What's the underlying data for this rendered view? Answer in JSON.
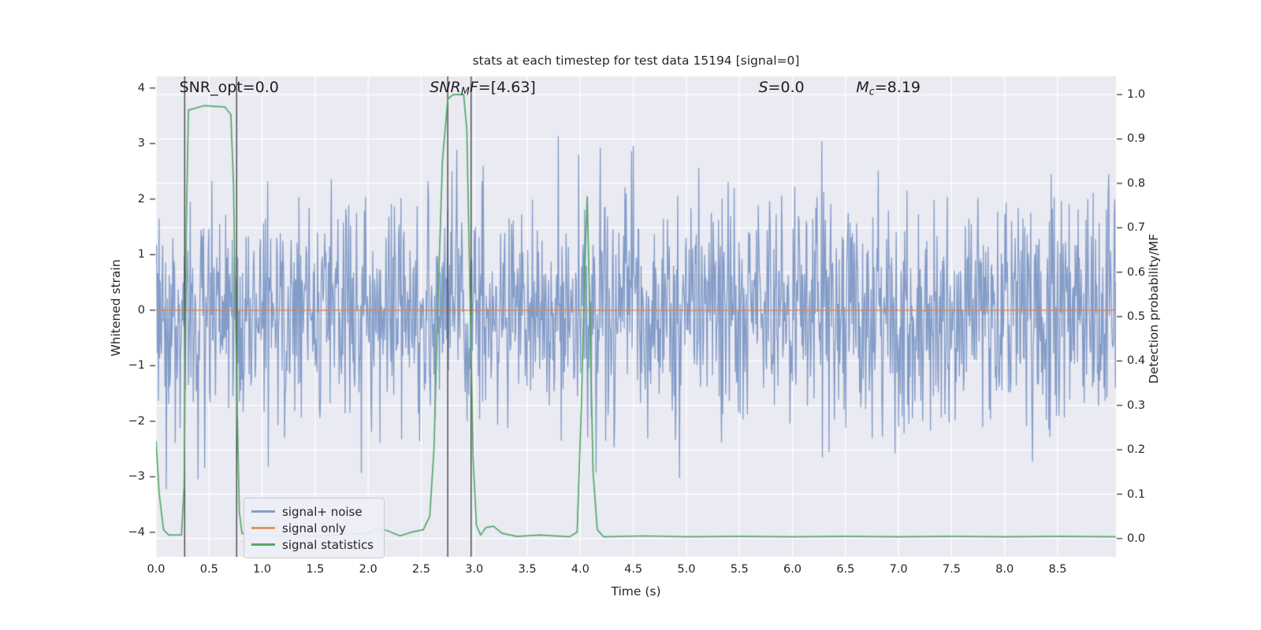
{
  "figure": {
    "bg": "#ffffff",
    "plot_bg": "#eaeaf2",
    "grid_color": "#ffffff",
    "text_color": "#262626",
    "vline_color": "#474747",
    "tick_mark_color": "#262626"
  },
  "chart_data": {
    "type": "line",
    "title": "stats at each timestep for test data 15194 [signal=0]",
    "xlabel": "Time (s)",
    "ylabel_left": "Whitened strain",
    "ylabel_right": "Detection probability/MF",
    "xlim": [
      0,
      9.05
    ],
    "ylim_left": [
      -4.44,
      4.21
    ],
    "ylim_right": [
      -0.041,
      1.041
    ],
    "x_ticks": [
      0.0,
      0.5,
      1.0,
      1.5,
      2.0,
      2.5,
      3.0,
      3.5,
      4.0,
      4.5,
      5.0,
      5.5,
      6.0,
      6.5,
      7.0,
      7.5,
      8.0,
      8.5
    ],
    "x_tick_labels": [
      "0.0",
      "0.5",
      "1.0",
      "1.5",
      "2.0",
      "2.5",
      "3.0",
      "3.5",
      "4.0",
      "4.5",
      "5.0",
      "5.5",
      "6.0",
      "6.5",
      "7.0",
      "7.5",
      "8.0",
      "8.5"
    ],
    "y_ticks_left": [
      -4,
      -3,
      -2,
      -1,
      0,
      1,
      2,
      3,
      4
    ],
    "y_tick_labels_left": [
      "−4",
      "−3",
      "−2",
      "−1",
      "0",
      "1",
      "2",
      "3",
      "4"
    ],
    "y_ticks_right": [
      0.0,
      0.1,
      0.2,
      0.3,
      0.4,
      0.5,
      0.6,
      0.7,
      0.8,
      0.9,
      1.0
    ],
    "y_tick_labels_right": [
      "0.0",
      "0.1",
      "0.2",
      "0.3",
      "0.4",
      "0.5",
      "0.6",
      "0.7",
      "0.8",
      "0.9",
      "1.0"
    ],
    "grid_on": true,
    "legend_position": "lower left",
    "series": [
      {
        "name": "signal+ noise",
        "axis": "left",
        "kind": "gaussian-noise",
        "mean": 0,
        "std": 1.05,
        "n_points": 1600,
        "seed": 3,
        "clip": 3.95,
        "color": "#4c72b0",
        "alpha": 0.65,
        "line_width": 1.3
      },
      {
        "name": "signal only",
        "axis": "left",
        "kind": "constant",
        "value": 0,
        "color": "#dd8452",
        "alpha": 0.9,
        "line_width": 1.5
      },
      {
        "name": "signal statistics",
        "axis": "right",
        "kind": "polyline",
        "color": "#55a868",
        "alpha": 1,
        "line_width": 1.7,
        "points": [
          [
            0,
            0.22
          ],
          [
            0.03,
            0.1
          ],
          [
            0.07,
            0.02
          ],
          [
            0.12,
            0.008
          ],
          [
            0.24,
            0.008
          ],
          [
            0.265,
            0.12
          ],
          [
            0.285,
            0.7
          ],
          [
            0.305,
            0.965
          ],
          [
            0.45,
            0.975
          ],
          [
            0.65,
            0.972
          ],
          [
            0.705,
            0.955
          ],
          [
            0.73,
            0.8
          ],
          [
            0.76,
            0.35
          ],
          [
            0.785,
            0.06
          ],
          [
            0.81,
            0.012
          ],
          [
            1.0,
            0.006
          ],
          [
            1.5,
            0.006
          ],
          [
            2.0,
            0.012
          ],
          [
            2.08,
            0.022
          ],
          [
            2.18,
            0.018
          ],
          [
            2.3,
            0.006
          ],
          [
            2.42,
            0.015
          ],
          [
            2.52,
            0.02
          ],
          [
            2.58,
            0.05
          ],
          [
            2.62,
            0.2
          ],
          [
            2.66,
            0.55
          ],
          [
            2.7,
            0.85
          ],
          [
            2.75,
            0.99
          ],
          [
            2.8,
            1.0
          ],
          [
            2.9,
            1.0
          ],
          [
            2.93,
            0.92
          ],
          [
            2.96,
            0.55
          ],
          [
            2.99,
            0.18
          ],
          [
            3.02,
            0.03
          ],
          [
            3.06,
            0.008
          ],
          [
            3.11,
            0.025
          ],
          [
            3.18,
            0.028
          ],
          [
            3.26,
            0.012
          ],
          [
            3.4,
            0.005
          ],
          [
            3.62,
            0.008
          ],
          [
            3.9,
            0.004
          ],
          [
            3.97,
            0.015
          ],
          [
            4.01,
            0.3
          ],
          [
            4.04,
            0.6
          ],
          [
            4.065,
            0.77
          ],
          [
            4.09,
            0.5
          ],
          [
            4.12,
            0.15
          ],
          [
            4.16,
            0.02
          ],
          [
            4.22,
            0.004
          ],
          [
            4.6,
            0.006
          ],
          [
            5.0,
            0.004
          ],
          [
            5.5,
            0.005
          ],
          [
            6.0,
            0.004
          ],
          [
            6.5,
            0.005
          ],
          [
            7.0,
            0.004
          ],
          [
            7.5,
            0.005
          ],
          [
            8.0,
            0.004
          ],
          [
            8.5,
            0.005
          ],
          [
            9.05,
            0.004
          ]
        ]
      }
    ],
    "vlines": {
      "color": "#474747",
      "positions": [
        0.27,
        0.76,
        2.75,
        2.97
      ]
    },
    "annotations": [
      {
        "x": 0.22,
        "y": 3.95,
        "segments": [
          {
            "text": "SNR_opt=0.0"
          }
        ]
      },
      {
        "x": 2.58,
        "y": 3.95,
        "segments": [
          {
            "text": "SNR",
            "italic": true
          },
          {
            "text": "M",
            "italic": true,
            "sub": true
          },
          {
            "text": "F",
            "italic": true
          },
          {
            "text": "=[4.63]"
          }
        ]
      },
      {
        "x": 5.68,
        "y": 3.95,
        "segments": [
          {
            "text": "S",
            "italic": true
          },
          {
            "text": "=0.0"
          }
        ]
      },
      {
        "x": 6.6,
        "y": 3.95,
        "segments": [
          {
            "text": "M",
            "italic": true
          },
          {
            "text": "c",
            "italic": true,
            "sub": true
          },
          {
            "text": "=8.19"
          }
        ]
      }
    ]
  },
  "legend": {
    "items": [
      {
        "label": "signal+ noise",
        "swatch": "rgba(76,114,176,0.65)"
      },
      {
        "label": "signal only",
        "swatch": "rgba(221,132,82,0.85)"
      },
      {
        "label": "signal statistics",
        "swatch": "#55a868"
      }
    ]
  }
}
